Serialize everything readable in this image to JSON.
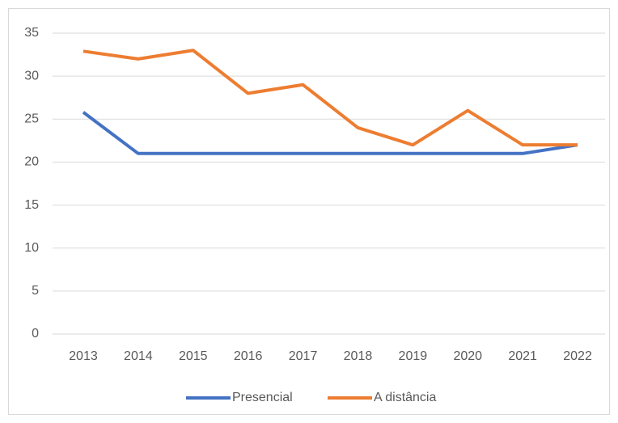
{
  "chart_data": {
    "type": "line",
    "categories": [
      "2013",
      "2014",
      "2015",
      "2016",
      "2017",
      "2018",
      "2019",
      "2020",
      "2021",
      "2022"
    ],
    "series": [
      {
        "name": "Presencial",
        "color": "#4472c4",
        "values": [
          25.8,
          21,
          21,
          21,
          21,
          21,
          21,
          21,
          21,
          22
        ]
      },
      {
        "name": "A distância",
        "color": "#ed7d31",
        "values": [
          32.9,
          32,
          33,
          28,
          29,
          24,
          22,
          26,
          22,
          22
        ]
      }
    ],
    "ylim": [
      0,
      35
    ],
    "yticks": [
      0,
      5,
      10,
      15,
      20,
      25,
      30,
      35
    ],
    "grid": true,
    "legend": "bottom"
  }
}
